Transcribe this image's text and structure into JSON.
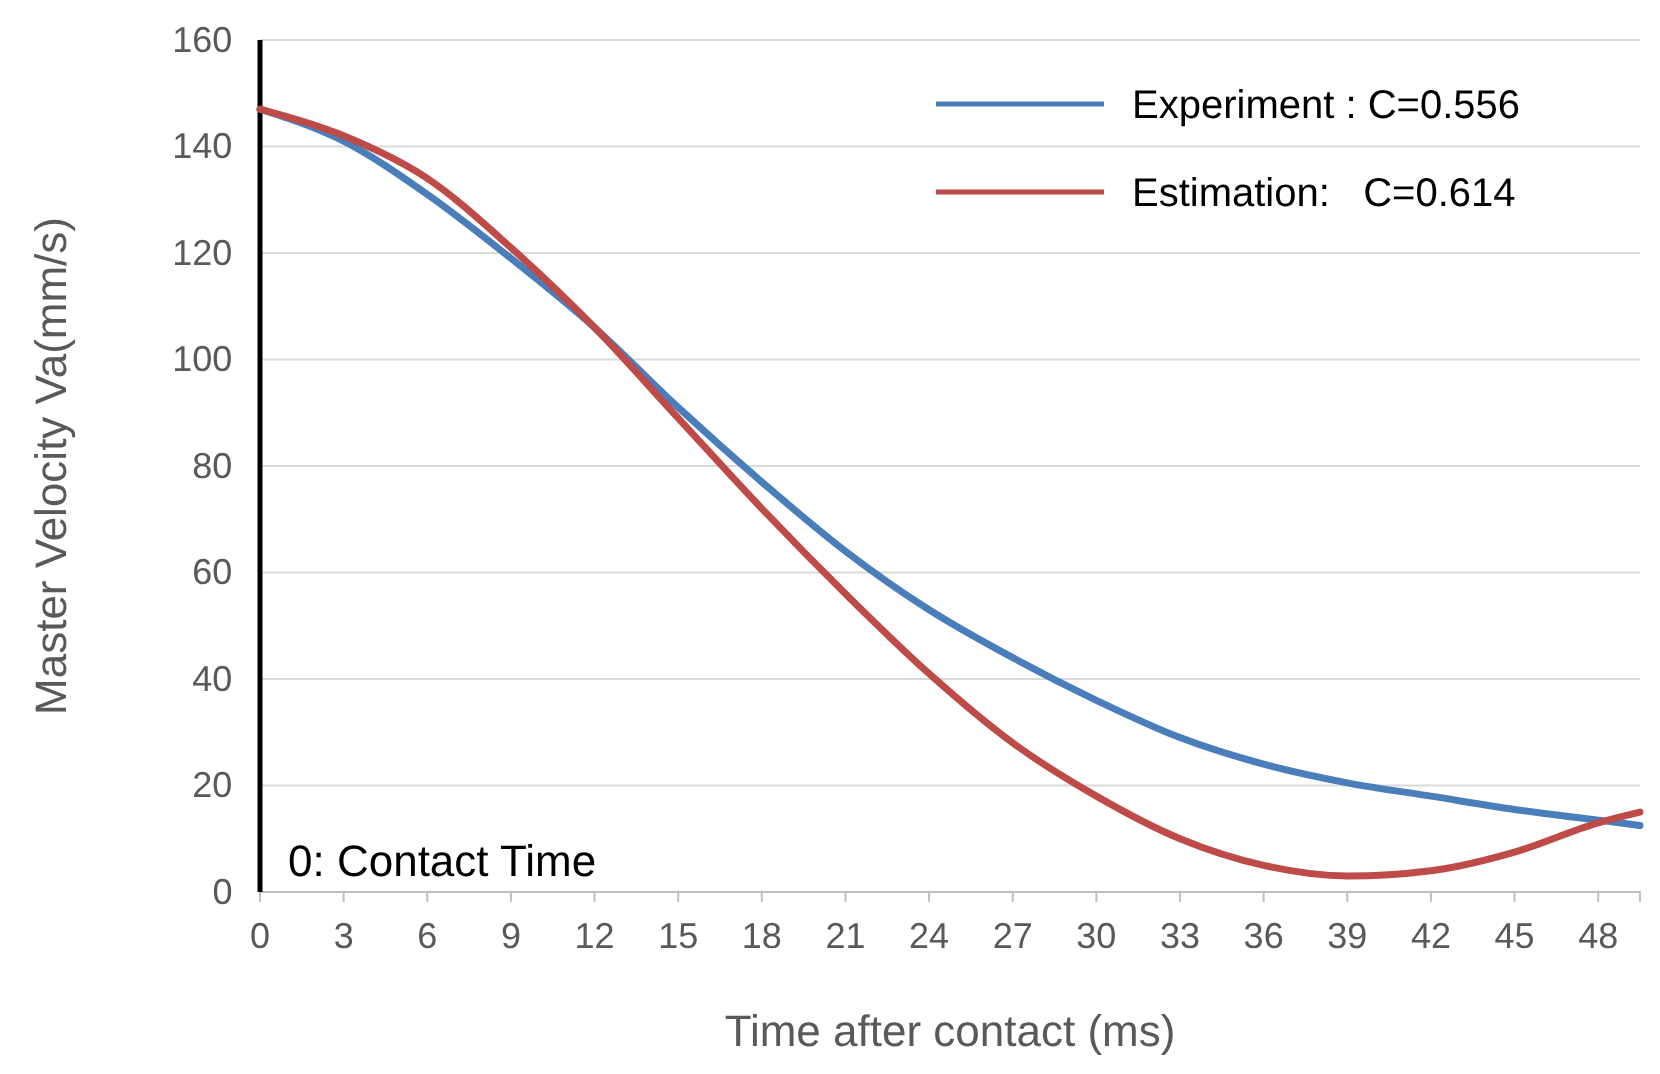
{
  "chart_data": {
    "type": "line",
    "xlabel": "Time after contact (ms)",
    "ylabel": "Master Velocity Va(mm/s)",
    "xlim": [
      0,
      49.5
    ],
    "xticks": [
      0,
      3,
      6,
      9,
      12,
      15,
      18,
      21,
      24,
      27,
      30,
      33,
      36,
      39,
      42,
      45,
      48
    ],
    "ylim": [
      0,
      160
    ],
    "yticks": [
      0,
      20,
      40,
      60,
      80,
      100,
      120,
      140,
      160
    ],
    "grid": "y",
    "legend": "top right",
    "marker": "none",
    "line_style": "solid",
    "annotations": [
      "0: Contact Time"
    ],
    "series": [
      {
        "name": "Experiment : C=0.556",
        "color": "#4a7ebb",
        "x": [
          0,
          3,
          6,
          9,
          12,
          15,
          18,
          21,
          24,
          27,
          30,
          33,
          36,
          39,
          42,
          45,
          48,
          49.5
        ],
        "values": [
          147,
          141,
          131,
          119,
          106,
          91,
          77,
          64,
          53,
          44,
          36,
          29,
          24,
          20.5,
          18,
          15.5,
          13.5,
          12.5
        ]
      },
      {
        "name": "Estimation:   C=0.614",
        "color": "#be4b48",
        "x": [
          0,
          3,
          6,
          9,
          12,
          15,
          18,
          21,
          24,
          27,
          30,
          33,
          36,
          39,
          42,
          45,
          48,
          49.5
        ],
        "values": [
          147,
          142,
          134,
          121,
          106,
          89,
          72,
          56,
          41,
          28,
          18,
          10,
          5,
          3,
          4,
          7.5,
          13,
          15
        ]
      }
    ]
  }
}
